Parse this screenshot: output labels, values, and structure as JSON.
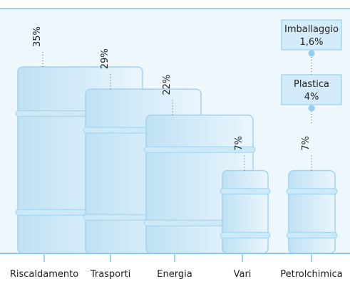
{
  "chart_data": {
    "type": "barrel",
    "categories": [
      "Riscaldamento",
      "Trasporti",
      "Energia",
      "Vari",
      "Petrolchimica"
    ],
    "values": [
      35,
      29,
      22,
      7,
      7
    ],
    "value_labels": [
      "35%",
      "29%",
      "22%",
      "7%",
      "7%"
    ],
    "color": "#c6e4f5",
    "annotations": [
      {
        "label": "Plastica",
        "value": 4,
        "value_label": "4%"
      },
      {
        "label": "Imballaggio",
        "value": 1.6,
        "value_label": "1,6%"
      }
    ]
  }
}
